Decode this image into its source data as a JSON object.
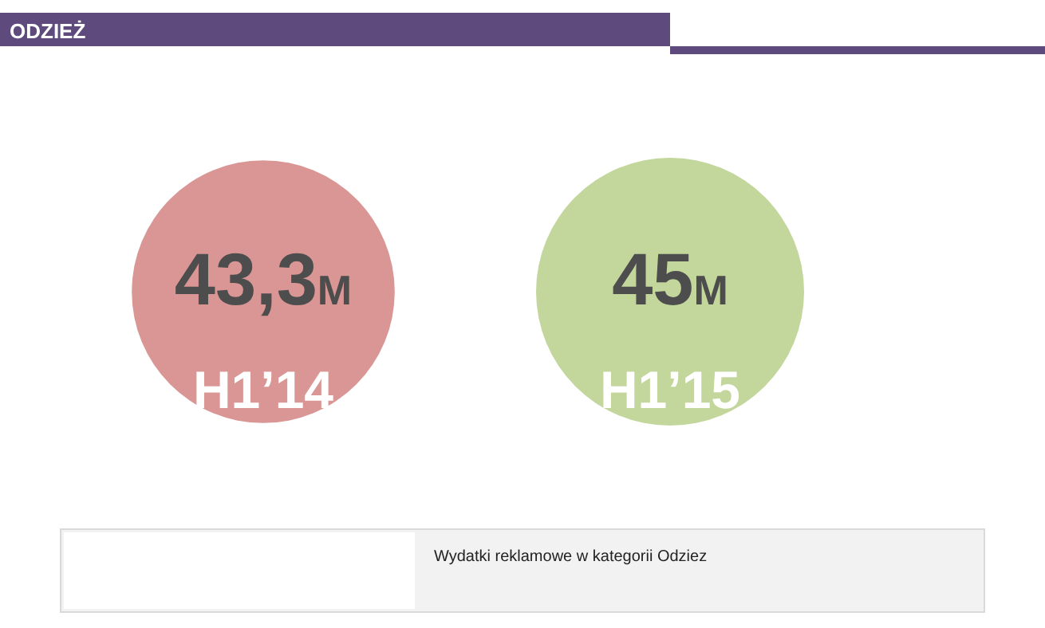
{
  "chart_data": {
    "type": "other",
    "title": "ODZIEŻ",
    "categories": [
      "H1’14",
      "H1’15"
    ],
    "values": [
      43.3,
      45
    ],
    "value_labels": [
      "43,3M",
      "45M"
    ],
    "colors": [
      "#d99694",
      "#c3d69b"
    ],
    "annotations": [
      "Wydatki reklamowe w kategorii Odziez"
    ]
  }
}
